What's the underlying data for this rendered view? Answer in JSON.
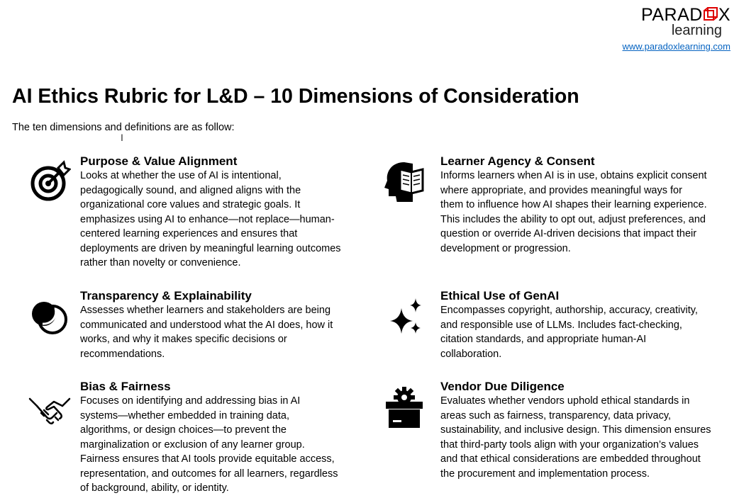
{
  "logo": {
    "word_a": "PARAD",
    "word_b": "X",
    "sub": "learning",
    "url": "www.paradoxlearning.com"
  },
  "title": "AI Ethics Rubric for L&D – 10 Dimensions of Consideration",
  "intro": "The ten dimensions and definitions are as follow:",
  "cards": [
    {
      "icon": "target-icon",
      "title": "Purpose & Value Alignment",
      "lines": [
        "Looks at whether the use of AI is intentional,",
        "pedagogically sound, and aligned aligns with the",
        "organizational core values and strategic goals. It",
        "emphasizes using AI to enhance—not replace—human-",
        "centered learning experiences and ensures that",
        "deployments are driven by meaningful learning outcomes",
        "rather than novelty or convenience."
      ]
    },
    {
      "icon": "head-book-icon",
      "title": "Learner Agency & Consent",
      "lines": [
        "Informs learners when AI is in use, obtains explicit consent",
        "where appropriate, and provides meaningful ways for",
        "them to influence how AI shapes their learning experience.",
        "This includes the ability to opt out, adjust preferences, and",
        "question or override AI-driven decisions that impact their",
        "development or progression."
      ]
    },
    {
      "icon": "overlapping-circles-icon",
      "title": "Transparency & Explainability",
      "lines": [
        "Assesses whether learners and stakeholders are being",
        "communicated and understood what the AI does, how it",
        "works, and why it makes specific decisions or",
        "recommendations."
      ]
    },
    {
      "icon": "sparkles-icon",
      "title": "Ethical Use of GenAI",
      "lines": [
        "Encompasses copyright, authorship, accuracy, creativity,",
        "and responsible use of LLMs. Includes fact-checking,",
        "citation standards, and appropriate human-AI",
        "collaboration."
      ]
    },
    {
      "icon": "handshake-icon",
      "title": "Bias & Fairness",
      "lines": [
        "Focuses on identifying and addressing bias in AI",
        "systems—whether embedded in training data,",
        "algorithms, or design choices—to prevent the",
        "marginalization or exclusion of any learner group.",
        "Fairness ensures that AI tools provide equitable access,",
        "representation, and outcomes for all learners, regardless",
        "of background, ability, or identity."
      ]
    },
    {
      "icon": "box-gear-icon",
      "title": "Vendor Due Diligence",
      "lines": [
        "Evaluates whether vendors uphold ethical standards in",
        "areas such as fairness, transparency, data privacy,",
        "sustainability, and inclusive design. This dimension ensures",
        "that third-party tools align with your organization’s values",
        "and that ethical considerations are embedded throughout",
        "the procurement and implementation process."
      ]
    }
  ]
}
